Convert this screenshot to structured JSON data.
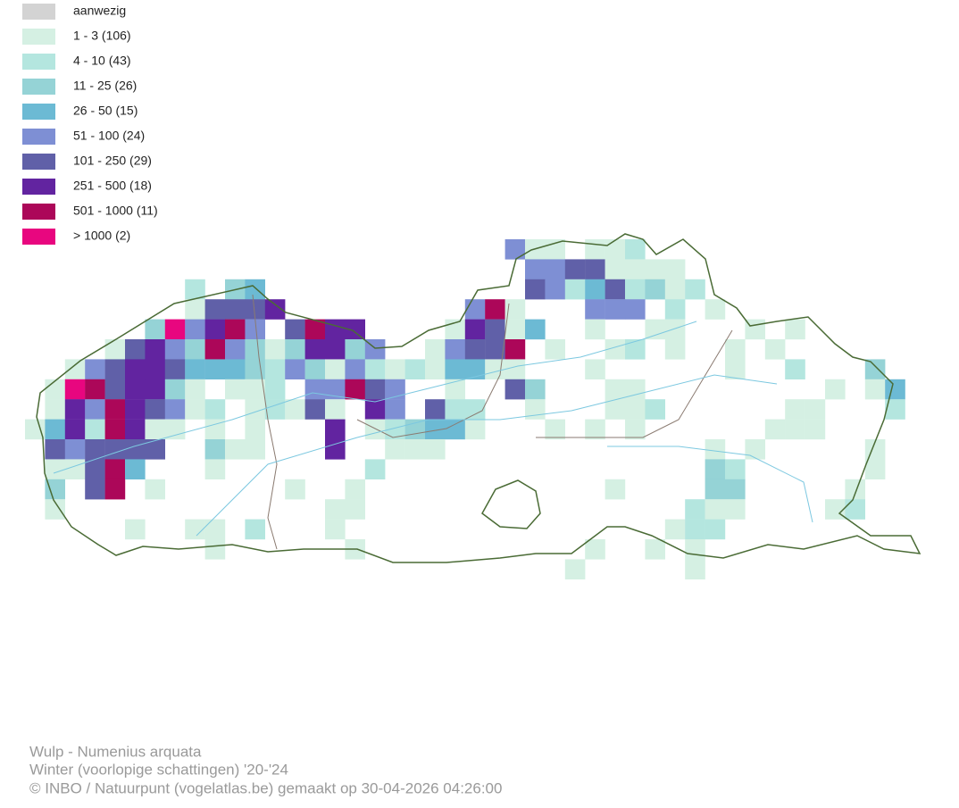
{
  "legend": [
    {
      "label": "aanwezig",
      "color": "#d3d3d3"
    },
    {
      "label": "1 - 3 (106)",
      "color": "#d5f0e3"
    },
    {
      "label": "4 - 10 (43)",
      "color": "#b4e6df"
    },
    {
      "label": "11 - 25 (26)",
      "color": "#95d3d6"
    },
    {
      "label": "26 - 50 (15)",
      "color": "#6cbad4"
    },
    {
      "label": "51 - 100 (24)",
      "color": "#7e8fd4"
    },
    {
      "label": "101 - 250 (29)",
      "color": "#6060a8"
    },
    {
      "label": "251 - 500 (18)",
      "color": "#6224a0"
    },
    {
      "label": "501 - 1000 (11)",
      "color": "#ac0759"
    },
    {
      "label": "> 1000 (2)",
      "color": "#e8067f"
    }
  ],
  "footer": {
    "species": "Wulp - Numenius arquata",
    "season": "Winter (voorlopige schattingen) '20-'24",
    "credit": "© INBO / Natuurpunt (vogelatlas.be) gemaakt op 30-04-2026 04:26:00"
  }
}
